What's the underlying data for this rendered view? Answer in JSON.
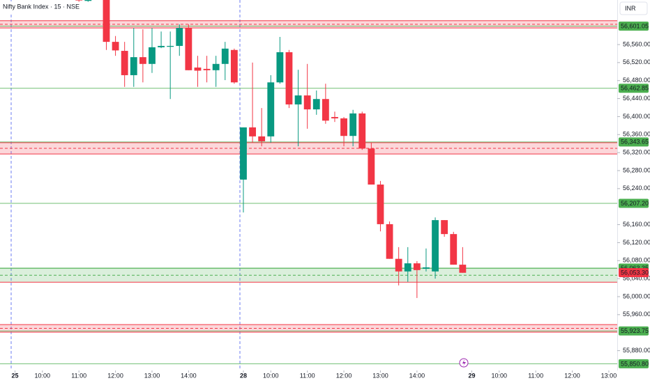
{
  "chart_data": {
    "type": "candlestick",
    "title": "Nifty Bank Index · 15 · NSE",
    "currency": "INR",
    "x": [
      -18,
      -17,
      -15,
      -14,
      -13,
      -12,
      -11,
      -10,
      -9,
      -8,
      -7,
      -6,
      -5,
      -4,
      -3,
      -2,
      -1,
      0,
      1,
      2,
      3,
      4,
      5,
      6,
      7,
      8,
      9,
      10,
      11,
      12,
      13,
      14,
      15,
      16,
      17,
      18,
      19,
      20,
      21,
      22,
      23,
      24
    ],
    "open": [
      56665,
      56657,
      56659,
      56566,
      56546,
      56492,
      56532,
      56517,
      56554,
      56555,
      56557,
      56597,
      56509,
      56506,
      56503,
      56517,
      56548,
      56260,
      56376,
      56356,
      56356,
      56476,
      56543,
      56427,
      56447,
      56416,
      56439,
      56399,
      56396,
      56357,
      56407,
      56329,
      56249,
      56161,
      56084,
      56056,
      56074,
      56062,
      56056,
      56170,
      56139,
      56071
    ],
    "high": [
      56675,
      56670,
      56675,
      56579,
      56566,
      56597,
      56594,
      56597,
      56589,
      56589,
      56605,
      56605,
      56535,
      56535,
      56535,
      56566,
      56551,
      56376,
      56520,
      56419,
      56492,
      56577,
      56548,
      56504,
      56517,
      56458,
      56473,
      56411,
      56399,
      56415,
      56411,
      56342,
      56257,
      56167,
      56110,
      56110,
      56079,
      56107,
      56176,
      56170,
      56144,
      56110
    ],
    "low": [
      56655,
      56655,
      56548,
      56535,
      56466,
      56466,
      56476,
      56497,
      56552,
      56439,
      56535,
      56503,
      56466,
      56476,
      56466,
      56481,
      56473,
      56187,
      56342,
      56334,
      56342,
      56473,
      56419,
      56334,
      56373,
      56404,
      56384,
      56388,
      56334,
      56334,
      56326,
      56249,
      56145,
      56084,
      56025,
      56033,
      55997,
      56056,
      56040,
      56133,
      56071,
      56053
    ],
    "close": [
      56658,
      56662,
      56566,
      56547,
      56492,
      56532,
      56517,
      56554,
      56557,
      56557,
      56597,
      56503,
      56502,
      56503,
      56517,
      56551,
      56476,
      56376,
      56356,
      56345,
      56476,
      56543,
      56427,
      56447,
      56416,
      56439,
      56391,
      56396,
      56357,
      56407,
      56329,
      56249,
      56161,
      56084,
      56056,
      56074,
      56059,
      56065,
      56170,
      56139,
      56071,
      56053
    ],
    "up_color": "#089981",
    "down_color": "#f23645",
    "xlim": [
      -26.64,
      40.92
    ],
    "xticks": [
      {
        "value": -25,
        "label": "25"
      },
      {
        "value": -22,
        "label": "10:00"
      },
      {
        "value": -18,
        "label": "11:00"
      },
      {
        "value": -14,
        "label": "12:00"
      },
      {
        "value": -10,
        "label": "13:00"
      },
      {
        "value": -6,
        "label": "14:00"
      },
      {
        "value": 0,
        "label": "28"
      },
      {
        "value": 3,
        "label": "10:00"
      },
      {
        "value": 7,
        "label": "11:00"
      },
      {
        "value": 11,
        "label": "12:00"
      },
      {
        "value": 15,
        "label": "13:00"
      },
      {
        "value": 19,
        "label": "14:00"
      },
      {
        "value": 25,
        "label": "29"
      },
      {
        "value": 28,
        "label": "10:00"
      },
      {
        "value": 32,
        "label": "11:00"
      },
      {
        "value": 36,
        "label": "12:00"
      },
      {
        "value": 40,
        "label": "13:00"
      }
    ],
    "ylim": [
      55836,
      56659
    ],
    "yticks": [
      {
        "value": 55880,
        "label": "55,880.00"
      },
      {
        "value": 55960,
        "label": "55,960.00"
      },
      {
        "value": 56000,
        "label": "56,000.00"
      },
      {
        "value": 56040,
        "label": "56,040.00"
      },
      {
        "value": 56080,
        "label": "56,080.00"
      },
      {
        "value": 56120,
        "label": "56,120.00"
      },
      {
        "value": 56160,
        "label": "56,160.00"
      },
      {
        "value": 56240,
        "label": "56,240.00"
      },
      {
        "value": 56280,
        "label": "56,280.00"
      },
      {
        "value": 56320,
        "label": "56,320.00"
      },
      {
        "value": 56360,
        "label": "56,360.00"
      },
      {
        "value": 56400,
        "label": "56,400.00"
      },
      {
        "value": 56440,
        "label": "56,440.00"
      },
      {
        "value": 56480,
        "label": "56,480.00"
      },
      {
        "value": 56520,
        "label": "56,520.00"
      },
      {
        "value": 56560,
        "label": "56,560.00"
      }
    ],
    "zones": [
      {
        "top": 56613,
        "bottom": 56597,
        "color": "#f23645"
      },
      {
        "top": 56342,
        "bottom": 56317,
        "color": "#f23645"
      },
      {
        "top": 56063,
        "bottom": 56032,
        "color": "#4caf50"
      },
      {
        "top": 55938,
        "bottom": 55921,
        "color": "#f23645"
      }
    ],
    "levels": [
      {
        "value": 56601.05,
        "label": "56,601.05",
        "color": "#4caf50"
      },
      {
        "value": 56462.85,
        "label": "56,462.85",
        "color": "#4caf50"
      },
      {
        "value": 56343.65,
        "label": "56,343.65",
        "color": "#4caf50"
      },
      {
        "value": 56207.2,
        "label": "56,207.20",
        "color": "#4caf50"
      },
      {
        "value": 56063.35,
        "label": "56,063.35",
        "color": "#4caf50"
      },
      {
        "value": 55923.75,
        "label": "55,923.75",
        "color": "#4caf50"
      },
      {
        "value": 55850.8,
        "label": "55,850.80",
        "color": "#4caf50"
      },
      {
        "value": 56053.3,
        "label": "56,053.30",
        "color": "#f23645"
      }
    ]
  }
}
